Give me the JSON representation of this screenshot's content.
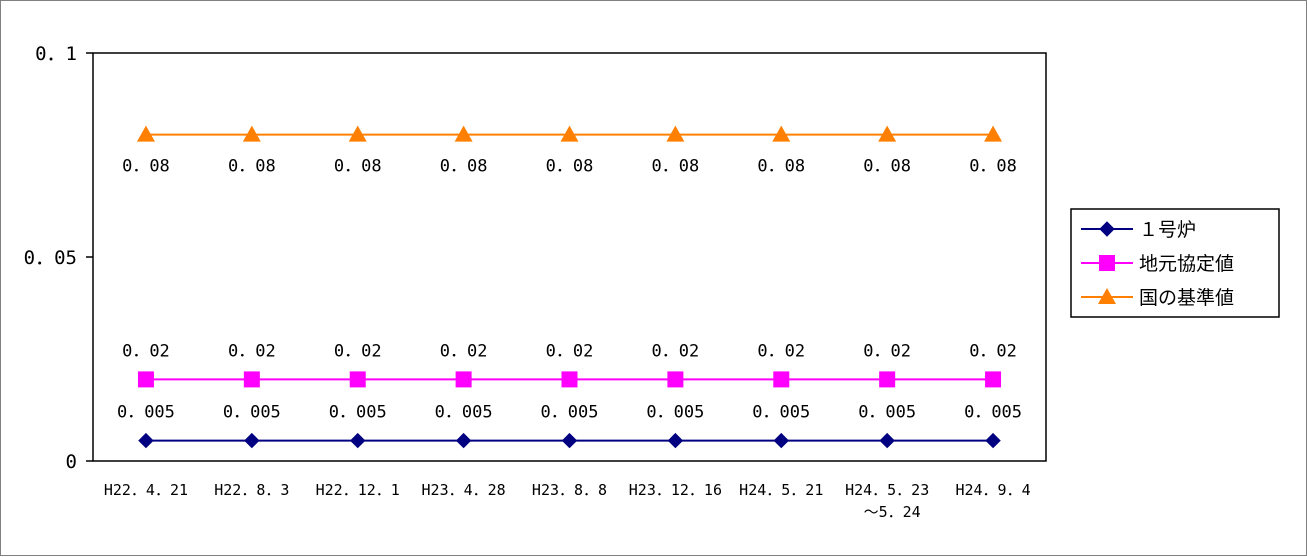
{
  "chart_data": {
    "type": "line",
    "categories": [
      [
        "H22.4.21"
      ],
      [
        "H22.8.3"
      ],
      [
        "H22.12.1"
      ],
      [
        "H23.4.28"
      ],
      [
        "H23.8.8"
      ],
      [
        "H23.12.16"
      ],
      [
        "H24.5.21"
      ],
      [
        "H24.5.23",
        "～5.24"
      ],
      [
        "H24.9.4"
      ]
    ],
    "category_labels": [
      [
        "H22．4．21"
      ],
      [
        "H22．8．3"
      ],
      [
        "H22．12．1"
      ],
      [
        "H23．4．28"
      ],
      [
        "H23．8．8"
      ],
      [
        "H23．12．16"
      ],
      [
        "H24．5．21"
      ],
      [
        "H24．5．23",
        "～5．24"
      ],
      [
        "H24．9．4"
      ]
    ],
    "ylim": [
      0,
      0.1
    ],
    "yticks": [
      0,
      0.05,
      0.1
    ],
    "ytick_labels": [
      "0",
      "0．05",
      "0．1"
    ],
    "legend_position": "right",
    "series": [
      {
        "name": "１号炉",
        "values": [
          0.005,
          0.005,
          0.005,
          0.005,
          0.005,
          0.005,
          0.005,
          0.005,
          0.005
        ],
        "data_labels": [
          "0．005",
          "0．005",
          "0．005",
          "0．005",
          "0．005",
          "0．005",
          "0．005",
          "0．005",
          "0．005"
        ],
        "label_position": "above",
        "color": "#000080",
        "marker": "diamond"
      },
      {
        "name": "地元協定値",
        "values": [
          0.02,
          0.02,
          0.02,
          0.02,
          0.02,
          0.02,
          0.02,
          0.02,
          0.02
        ],
        "data_labels": [
          "0．02",
          "0．02",
          "0．02",
          "0．02",
          "0．02",
          "0．02",
          "0．02",
          "0．02",
          "0．02"
        ],
        "label_position": "above",
        "color": "#ff00ff",
        "marker": "square"
      },
      {
        "name": "国の基準値",
        "values": [
          0.08,
          0.08,
          0.08,
          0.08,
          0.08,
          0.08,
          0.08,
          0.08,
          0.08
        ],
        "data_labels": [
          "0．08",
          "0．08",
          "0．08",
          "0．08",
          "0．08",
          "0．08",
          "0．08",
          "0．08",
          "0．08"
        ],
        "label_position": "below",
        "color": "#ff8000",
        "marker": "triangle"
      }
    ]
  }
}
